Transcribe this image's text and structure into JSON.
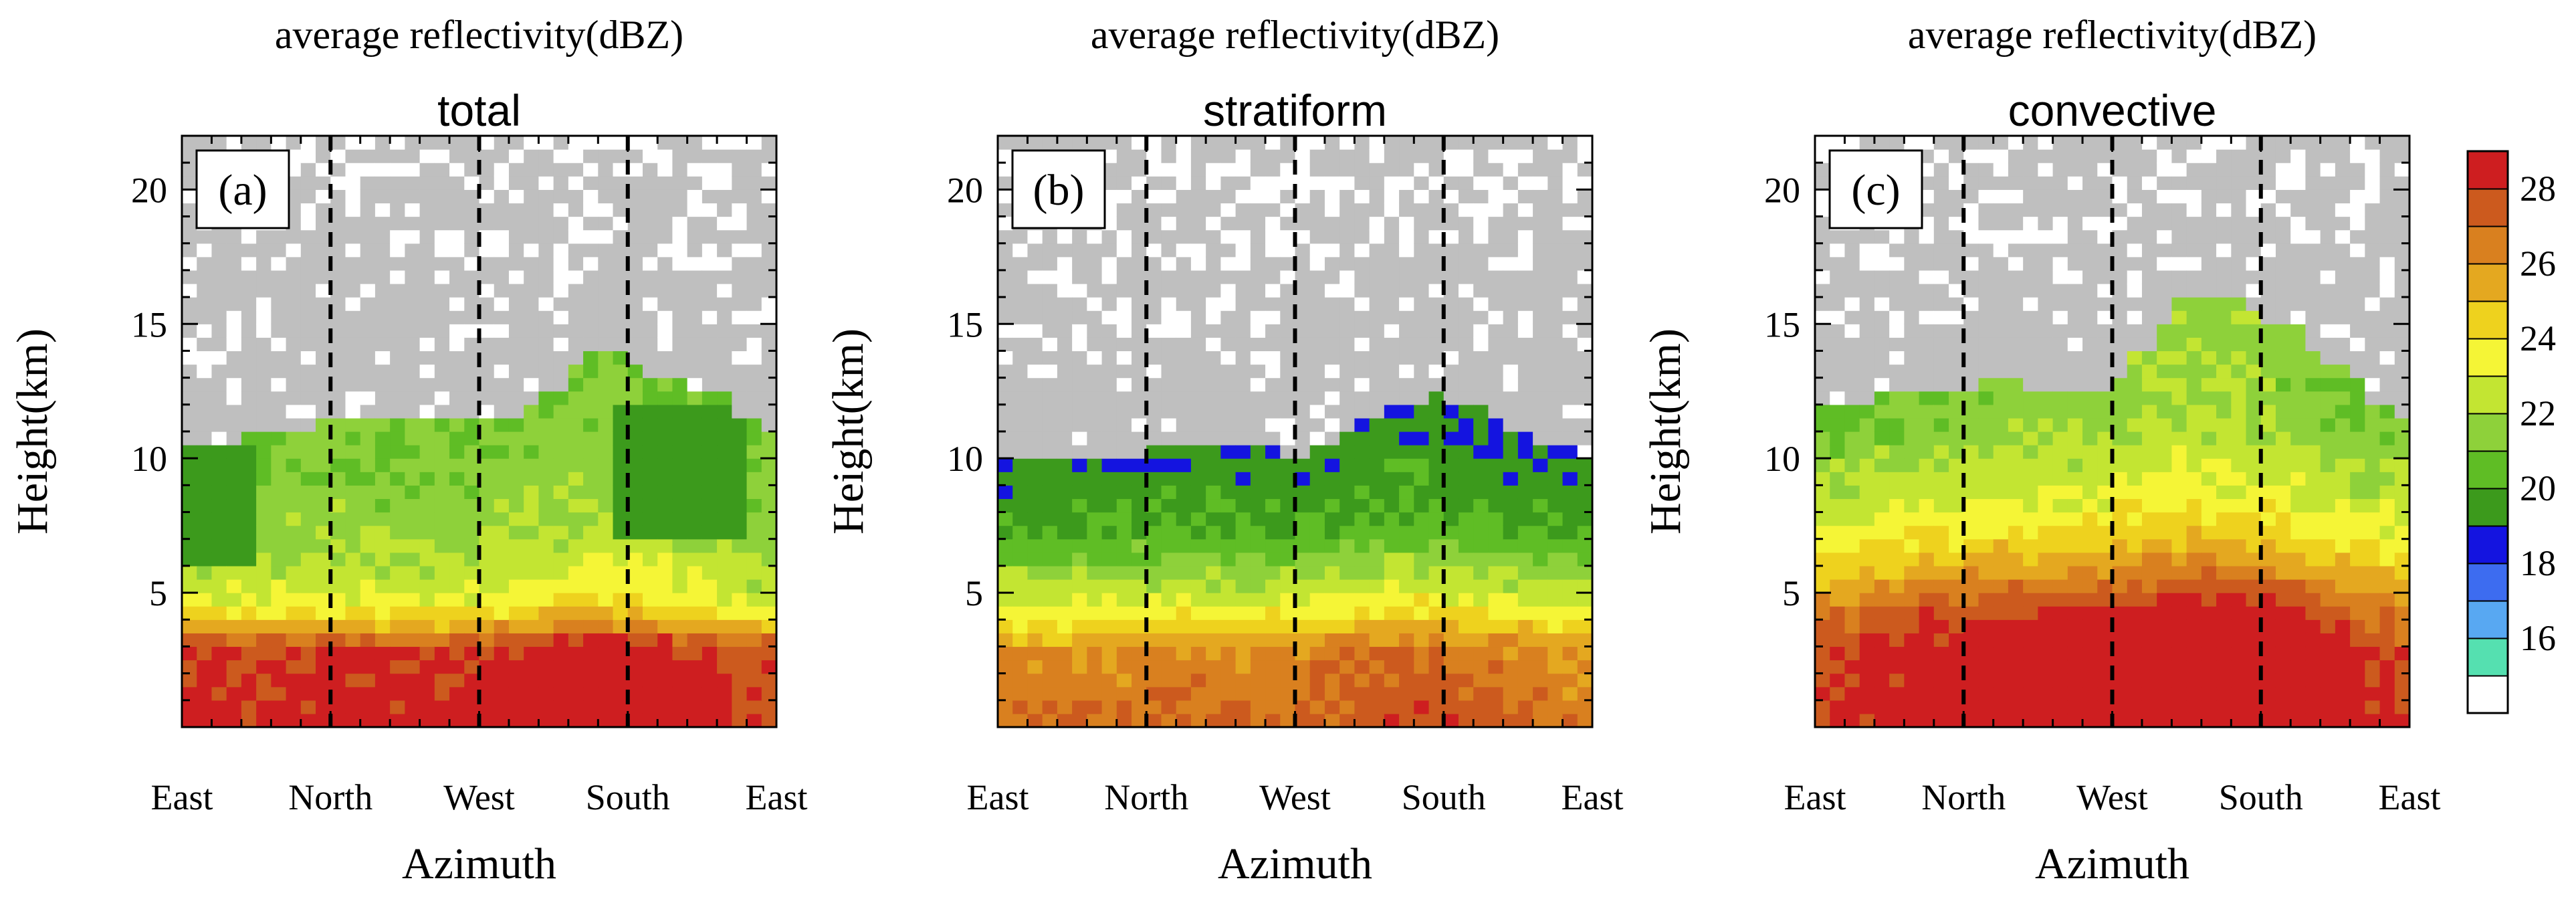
{
  "figure": {
    "colors": {
      "bins": [
        "#ffffff",
        "#55e0b0",
        "#58a8f2",
        "#3d6cf0",
        "#1414e0",
        "#3c9a1c",
        "#5fbd25",
        "#8ed13a",
        "#c3e532",
        "#f5f536",
        "#eed21e",
        "#e4a820",
        "#d9801f",
        "#cc5a1e",
        "#ce1e20"
      ],
      "nodata": "#bfbfbf",
      "background": "#ffffff"
    },
    "colorbar": {
      "labels": [
        "16",
        "18",
        "20",
        "22",
        "24",
        "26",
        "28"
      ]
    }
  },
  "chart_data": [
    {
      "type": "heatmap",
      "title": "average reflectivity(dBZ)",
      "subtitle": "total",
      "panel_label": "(a)",
      "xlabel": "Azimuth",
      "ylabel": "Height(km)",
      "x_ticks": [
        "East",
        "North",
        "West",
        "South",
        "East"
      ],
      "y_ticks": [
        "5",
        "10",
        "15",
        "20"
      ],
      "ylim": [
        0,
        22
      ],
      "x_range_deg": [
        0,
        360
      ],
      "dashed_lines_at": [
        "North",
        "West",
        "South"
      ],
      "echo_top_km": [
        10.5,
        10.4,
        10.6,
        10.8,
        11.0,
        11.2,
        11.3,
        11.5,
        11.6,
        11.7,
        11.7,
        11.6,
        11.5,
        11.5,
        11.4,
        11.7,
        12.0,
        12.6,
        13.3,
        13.8,
        13.9,
        13.6,
        13.1,
        12.8,
        12.6,
        12.3,
        11.6,
        10.8
      ],
      "profile_dbz": [
        [
          0,
          28.6
        ],
        [
          3,
          27.8
        ],
        [
          4,
          24.5
        ],
        [
          5,
          22.8
        ],
        [
          7,
          21.8
        ],
        [
          9,
          21.3
        ],
        [
          11,
          21.0
        ],
        [
          14,
          20.5
        ]
      ],
      "azimuth_enhancement_dbz": [
        0,
        0,
        -0.3,
        -0.2,
        0,
        0.1,
        0.2,
        0.3,
        0.2,
        0,
        -0.1,
        -0.1,
        0,
        0.2,
        0.4,
        0.6,
        0.8,
        1.0,
        1.1,
        1.3,
        1.4,
        1.3,
        1.0,
        0.6,
        0.3,
        -0.2,
        -0.5,
        -0.3
      ],
      "low_reflectivity_zones": [
        {
          "az": [
            0,
            45
          ],
          "z": [
            6.2,
            10.5
          ],
          "dbz": 19.5
        },
        {
          "az": [
            265,
            345
          ],
          "z": [
            7.0,
            12.0
          ],
          "dbz": 19.5
        }
      ]
    },
    {
      "type": "heatmap",
      "title": "average reflectivity(dBZ)",
      "subtitle": "stratiform",
      "panel_label": "(b)",
      "xlabel": "Azimuth",
      "ylabel": "Height(km)",
      "x_ticks": [
        "East",
        "North",
        "West",
        "South",
        "East"
      ],
      "y_ticks": [
        "5",
        "10",
        "15",
        "20"
      ],
      "ylim": [
        0,
        22
      ],
      "x_range_deg": [
        0,
        360
      ],
      "dashed_lines_at": [
        "North",
        "West",
        "South"
      ],
      "echo_top_km": [
        9.8,
        9.8,
        9.9,
        10.0,
        10.1,
        10.2,
        10.2,
        10.3,
        10.4,
        10.4,
        10.4,
        10.3,
        10.3,
        10.2,
        10.2,
        10.4,
        10.8,
        11.3,
        11.9,
        12.2,
        12.3,
        12.1,
        11.8,
        11.3,
        10.9,
        10.5,
        10.3,
        10.2
      ],
      "profile_dbz": [
        [
          0,
          27.0
        ],
        [
          3,
          26.0
        ],
        [
          4,
          23.8
        ],
        [
          5,
          22.5
        ],
        [
          6.2,
          21.0
        ],
        [
          7.2,
          20.0
        ],
        [
          9,
          19.4
        ],
        [
          12,
          18.5
        ]
      ],
      "azimuth_enhancement_dbz": [
        0,
        0,
        0,
        0,
        0,
        0,
        0.1,
        0.2,
        0.2,
        0.2,
        0.1,
        0,
        0,
        0.1,
        0.3,
        0.5,
        0.6,
        0.8,
        1.0,
        1.1,
        1.1,
        0.9,
        0.6,
        0.4,
        0.2,
        0,
        -0.1,
        -0.1
      ],
      "low_reflectivity_zones": []
    },
    {
      "type": "heatmap",
      "title": "average reflectivity(dBZ)",
      "subtitle": "convective",
      "panel_label": "(c)",
      "xlabel": "Azimuth",
      "ylabel": "Height(km)",
      "x_ticks": [
        "East",
        "North",
        "West",
        "South",
        "East"
      ],
      "y_ticks": [
        "5",
        "10",
        "15",
        "20"
      ],
      "ylim": [
        0,
        22
      ],
      "x_range_deg": [
        0,
        360
      ],
      "dashed_lines_at": [
        "North",
        "West",
        "South"
      ],
      "echo_top_km": [
        11.8,
        12.0,
        12.2,
        12.4,
        12.4,
        12.5,
        12.6,
        12.7,
        12.8,
        12.8,
        12.7,
        12.6,
        12.6,
        12.7,
        13.2,
        14.0,
        15.0,
        15.8,
        16.0,
        15.8,
        15.5,
        15.2,
        14.8,
        14.0,
        13.3,
        12.8,
        12.2,
        11.7
      ],
      "profile_dbz": [
        [
          0,
          29.5
        ],
        [
          2.5,
          29.0
        ],
        [
          4,
          28.0
        ],
        [
          5.5,
          26.0
        ],
        [
          7,
          24.0
        ],
        [
          9,
          22.5
        ],
        [
          11,
          21.5
        ],
        [
          14,
          21.0
        ]
      ],
      "azimuth_enhancement_dbz": [
        -1.5,
        -1.3,
        -1.0,
        -0.8,
        -0.4,
        -0.2,
        0,
        0.2,
        0.4,
        0.4,
        0.4,
        0.4,
        0.6,
        0.9,
        1.2,
        1.6,
        1.9,
        2.1,
        2.1,
        2.0,
        1.7,
        1.3,
        0.8,
        0.2,
        -0.3,
        -0.8,
        -1.2,
        -1.5
      ],
      "low_reflectivity_zones": []
    }
  ]
}
